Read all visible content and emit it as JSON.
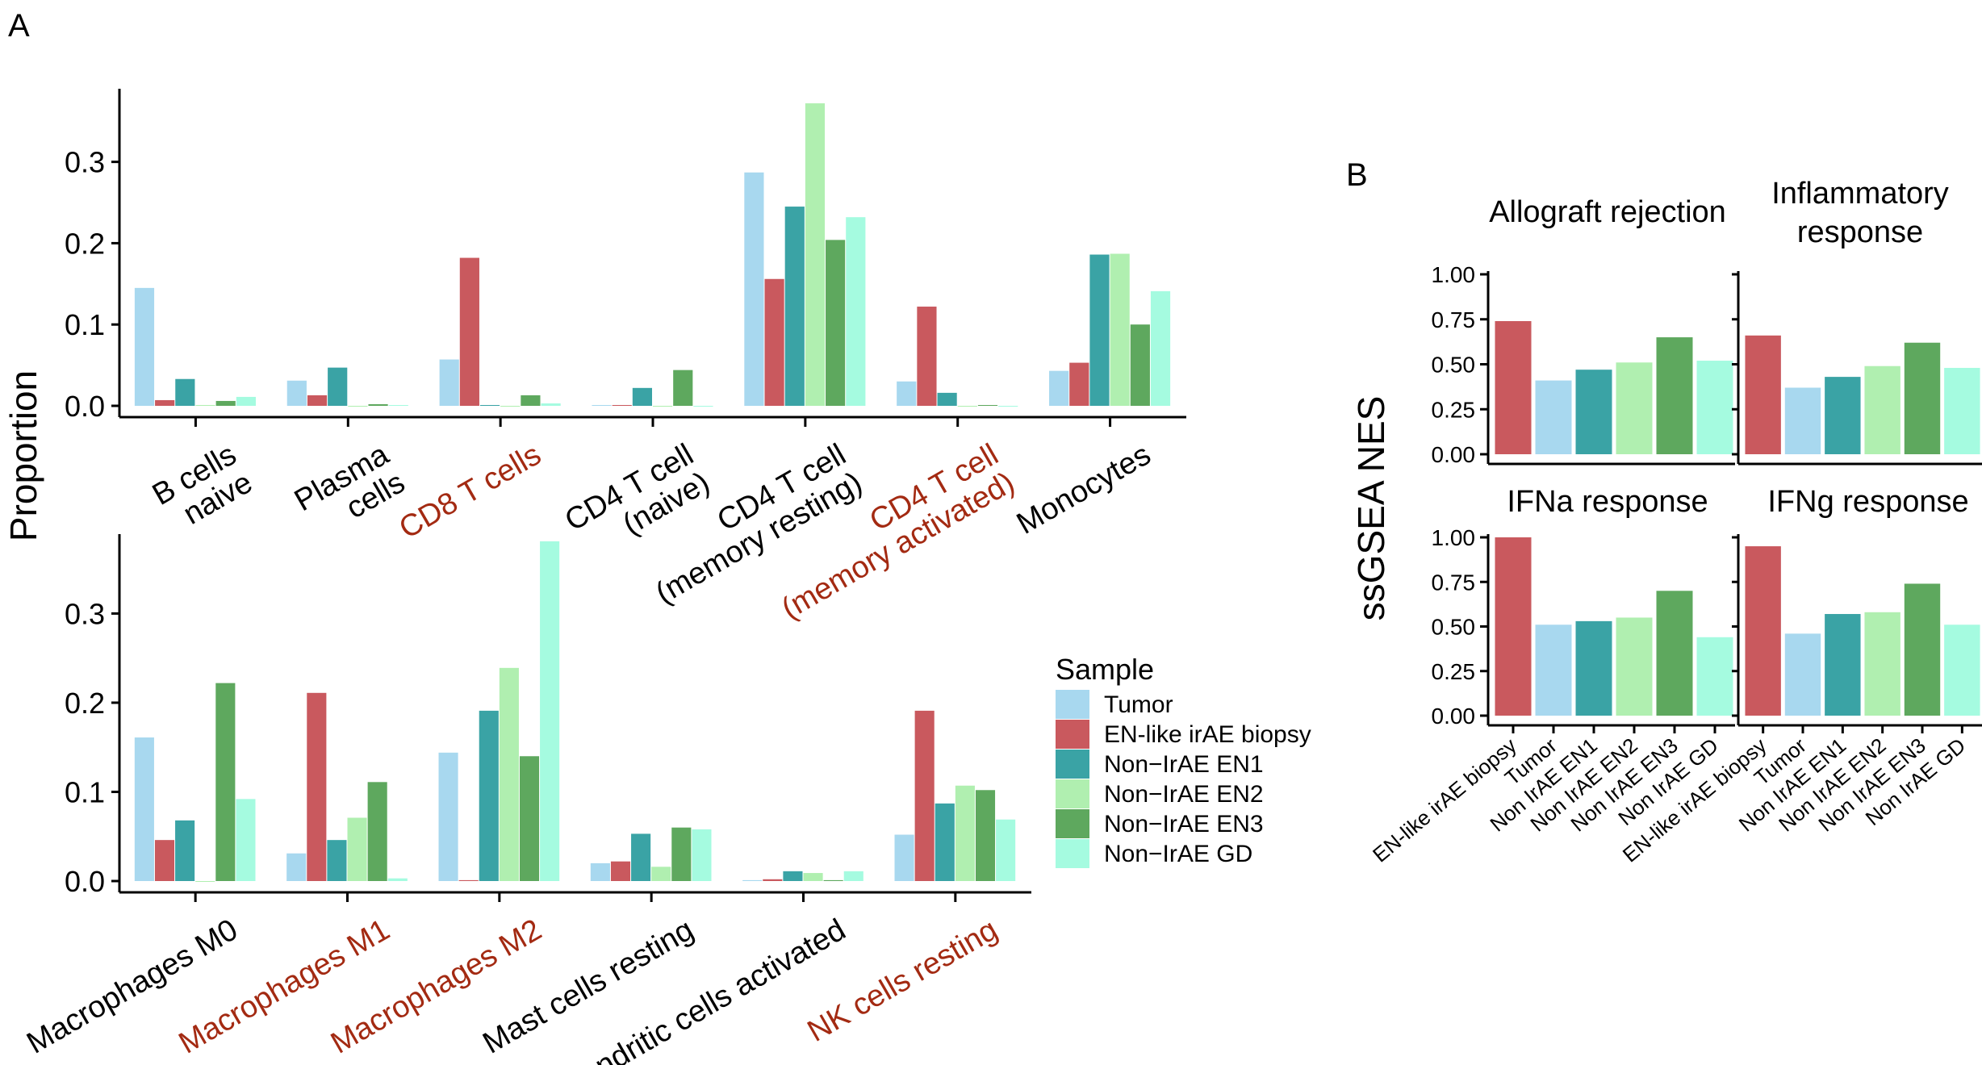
{
  "figure": {
    "panel_a_letter": "A",
    "panel_b_letter": "B",
    "ylabel_a": "Proportion",
    "ylabel_b": "ssGSEA NES",
    "highlight_color": "#a32a12",
    "text_color": "#000000"
  },
  "legend": {
    "title": "Sample",
    "items": [
      {
        "name": "Tumor",
        "color": "#a8d8ef"
      },
      {
        "name": "EN-like irAE biopsy",
        "color": "#c9595e"
      },
      {
        "name": "Non−IrAE EN1",
        "color": "#3aa3a5"
      },
      {
        "name": "Non−IrAE EN2",
        "color": "#b0efb0"
      },
      {
        "name": "Non−IrAE EN3",
        "color": "#5ea85e"
      },
      {
        "name": "Non−IrAE  GD",
        "color": "#a5fbe0"
      }
    ]
  },
  "chart_data": [
    {
      "panel": "A-top",
      "type": "bar",
      "ylabel": "Proportion",
      "ylim": [
        0,
        0.38
      ],
      "yticks": [
        "0.0",
        "0.1",
        "0.2",
        "0.3"
      ],
      "series_names": [
        "Tumor",
        "EN-like irAE biopsy",
        "Non−IrAE EN1",
        "Non−IrAE EN2",
        "Non−IrAE EN3",
        "Non−IrAE  GD"
      ],
      "categories": [
        {
          "lines": [
            "B cells",
            "naive"
          ],
          "highlight": false,
          "values": [
            0.145,
            0.007,
            0.033,
            0.001,
            0.006,
            0.011
          ]
        },
        {
          "lines": [
            "Plasma",
            "cells"
          ],
          "highlight": false,
          "values": [
            0.031,
            0.013,
            0.047,
            0.0,
            0.002,
            0.001
          ]
        },
        {
          "lines": [
            "CD8 T cells"
          ],
          "highlight": true,
          "values": [
            0.057,
            0.182,
            0.001,
            0.0,
            0.013,
            0.003
          ]
        },
        {
          "lines": [
            "CD4 T cell",
            "(naive)"
          ],
          "highlight": false,
          "values": [
            0.001,
            0.001,
            0.022,
            0.0,
            0.044,
            0.0
          ]
        },
        {
          "lines": [
            "CD4 T cell",
            "(memory resting)"
          ],
          "highlight": false,
          "values": [
            0.287,
            0.156,
            0.245,
            0.372,
            0.204,
            0.232
          ]
        },
        {
          "lines": [
            "CD4 T cell",
            "(memory activated)"
          ],
          "highlight": true,
          "values": [
            0.03,
            0.122,
            0.016,
            0.0,
            0.001,
            0.0
          ]
        },
        {
          "lines": [
            "Monocytes"
          ],
          "highlight": false,
          "values": [
            0.043,
            0.053,
            0.186,
            0.187,
            0.1,
            0.141
          ]
        }
      ]
    },
    {
      "panel": "A-bottom",
      "type": "bar",
      "ylabel": "Proportion",
      "ylim": [
        0,
        0.38
      ],
      "yticks": [
        "0.0",
        "0.1",
        "0.2",
        "0.3"
      ],
      "series_names": [
        "Tumor",
        "EN-like irAE biopsy",
        "Non−IrAE EN1",
        "Non−IrAE EN2",
        "Non−IrAE EN3",
        "Non−IrAE  GD"
      ],
      "categories": [
        {
          "lines": [
            "Macrophages M0"
          ],
          "highlight": false,
          "values": [
            0.161,
            0.046,
            0.068,
            0.0,
            0.222,
            0.092
          ]
        },
        {
          "lines": [
            "Macrophages M1"
          ],
          "highlight": true,
          "values": [
            0.031,
            0.211,
            0.046,
            0.071,
            0.111,
            0.003
          ]
        },
        {
          "lines": [
            "Macrophages M2"
          ],
          "highlight": true,
          "values": [
            0.144,
            0.001,
            0.191,
            0.239,
            0.14,
            0.381
          ]
        },
        {
          "lines": [
            "Mast cells resting"
          ],
          "highlight": false,
          "values": [
            0.02,
            0.022,
            0.053,
            0.016,
            0.06,
            0.058
          ]
        },
        {
          "lines": [
            "Dendritic cells activated"
          ],
          "highlight": false,
          "values": [
            0.001,
            0.002,
            0.011,
            0.009,
            0.001,
            0.011
          ]
        },
        {
          "lines": [
            "NK cells resting"
          ],
          "highlight": true,
          "values": [
            0.052,
            0.191,
            0.087,
            0.107,
            0.102,
            0.069
          ]
        }
      ]
    },
    {
      "panel": "B-allograft",
      "type": "bar",
      "title": [
        "Allograft rejection"
      ],
      "ylabel": "ssGSEA NES",
      "ylim": [
        0,
        1.0
      ],
      "yticks": [
        "0.00",
        "0.25",
        "0.50",
        "0.75",
        "1.00"
      ],
      "categories": [
        "EN-like irAE biopsy",
        "Tumor",
        "Non IrAE EN1",
        "Non IrAE EN2",
        "Non IrAE EN3",
        "Non IrAE GD"
      ],
      "values": [
        0.74,
        0.41,
        0.47,
        0.51,
        0.65,
        0.52
      ]
    },
    {
      "panel": "B-inflammatory",
      "type": "bar",
      "title": [
        "Inflammatory",
        "response"
      ],
      "ylabel": "ssGSEA NES",
      "ylim": [
        0,
        1.0
      ],
      "yticks": [
        "0.00",
        "0.25",
        "0.50",
        "0.75",
        "1.00"
      ],
      "categories": [
        "EN-like irAE biopsy",
        "Tumor",
        "Non IrAE EN1",
        "Non IrAE EN2",
        "Non IrAE EN3",
        "Non IrAE GD"
      ],
      "values": [
        0.66,
        0.37,
        0.43,
        0.49,
        0.62,
        0.48
      ]
    },
    {
      "panel": "B-ifna",
      "type": "bar",
      "title": [
        "IFNa response"
      ],
      "ylabel": "ssGSEA NES",
      "ylim": [
        0,
        1.0
      ],
      "yticks": [
        "0.00",
        "0.25",
        "0.50",
        "0.75",
        "1.00"
      ],
      "categories": [
        "EN-like irAE biopsy",
        "Tumor",
        "Non IrAE EN1",
        "Non IrAE EN2",
        "Non IrAE EN3",
        "Non IrAE GD"
      ],
      "values": [
        1.0,
        0.51,
        0.53,
        0.55,
        0.7,
        0.44
      ]
    },
    {
      "panel": "B-ifng",
      "type": "bar",
      "title": [
        "IFNg response"
      ],
      "ylabel": "ssGSEA NES",
      "ylim": [
        0,
        1.0
      ],
      "yticks": [
        "0.00",
        "0.25",
        "0.50",
        "0.75",
        "1.00"
      ],
      "categories": [
        "EN-like irAE biopsy",
        "Tumor",
        "Non IrAE EN1",
        "Non IrAE EN2",
        "Non IrAE EN3",
        "Non IrAE GD"
      ],
      "values": [
        0.95,
        0.46,
        0.57,
        0.58,
        0.74,
        0.51
      ]
    }
  ]
}
